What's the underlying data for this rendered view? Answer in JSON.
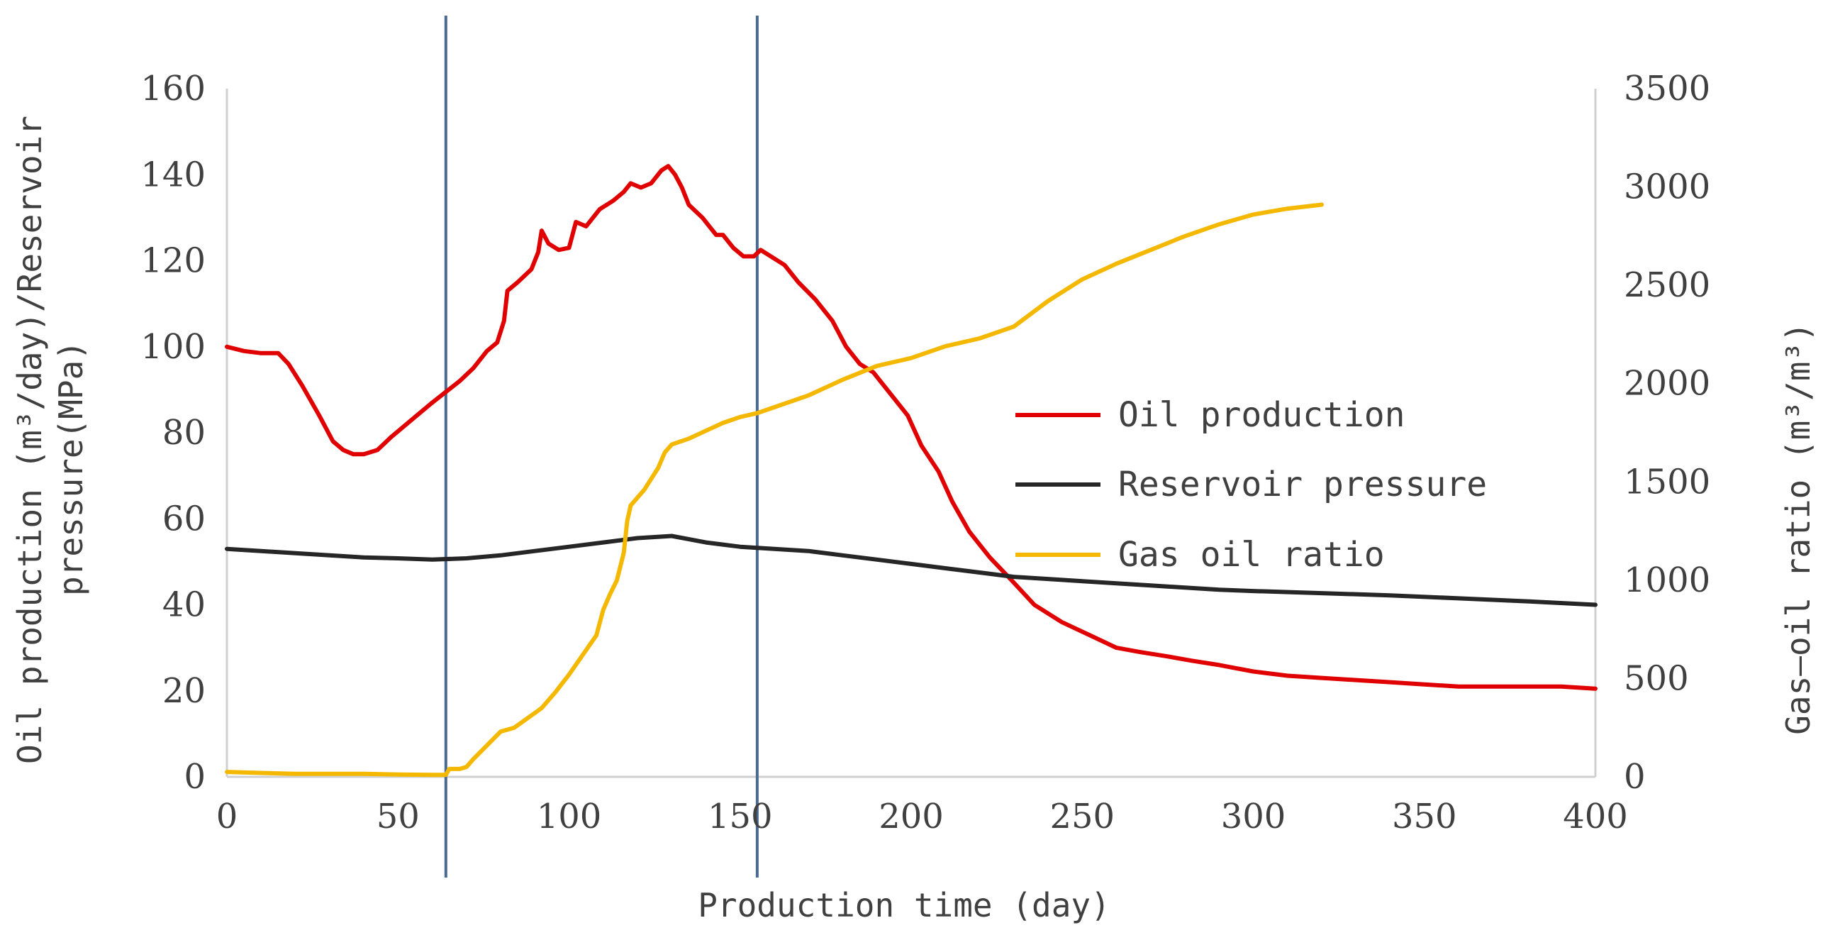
{
  "chart_data": {
    "type": "line",
    "x_axis": {
      "label": "Production time (day)",
      "range": [
        0,
        400
      ],
      "ticks": [
        "0",
        "50",
        "100",
        "150",
        "200",
        "250",
        "300",
        "350",
        "400"
      ]
    },
    "y_left": {
      "label_line1": "Oil production (m³/day)/Reservoir",
      "label_line2": "pressure(MPa)",
      "range": [
        0,
        160
      ],
      "ticks": [
        "0",
        "20",
        "40",
        "60",
        "80",
        "100",
        "120",
        "140",
        "160"
      ]
    },
    "y_right": {
      "label": "Gas–oil ratio (m³/m³)",
      "range": [
        0,
        3500
      ],
      "ticks": [
        "0",
        "500",
        "1000",
        "1500",
        "2000",
        "2500",
        "3000",
        "3500"
      ]
    },
    "vertical_markers": [
      64,
      155
    ],
    "legend_position": "center-right",
    "series": [
      {
        "name": "Oil production",
        "axis": "left",
        "color": "#e00000",
        "points": [
          [
            0,
            100
          ],
          [
            5,
            99
          ],
          [
            10,
            98.5
          ],
          [
            15,
            98.5
          ],
          [
            18,
            96
          ],
          [
            22,
            91
          ],
          [
            27,
            84
          ],
          [
            31,
            78
          ],
          [
            34,
            76
          ],
          [
            37,
            75
          ],
          [
            40,
            75
          ],
          [
            44,
            76
          ],
          [
            48,
            79
          ],
          [
            54,
            83
          ],
          [
            60,
            87
          ],
          [
            64,
            89.5
          ],
          [
            68,
            92
          ],
          [
            72,
            95
          ],
          [
            76,
            99
          ],
          [
            79,
            101
          ],
          [
            81,
            106
          ],
          [
            82,
            113
          ],
          [
            85,
            115
          ],
          [
            89,
            118
          ],
          [
            91,
            122
          ],
          [
            92,
            127
          ],
          [
            94,
            124
          ],
          [
            97,
            122.5
          ],
          [
            100,
            123
          ],
          [
            102,
            129
          ],
          [
            105,
            128
          ],
          [
            109,
            132
          ],
          [
            113,
            134
          ],
          [
            116,
            136
          ],
          [
            118,
            138
          ],
          [
            121,
            137
          ],
          [
            124,
            138
          ],
          [
            127,
            141
          ],
          [
            129,
            142
          ],
          [
            131,
            140
          ],
          [
            133,
            137
          ],
          [
            135,
            133
          ],
          [
            139,
            130
          ],
          [
            141,
            128
          ],
          [
            143,
            126
          ],
          [
            145,
            126
          ],
          [
            148,
            123
          ],
          [
            151,
            121
          ],
          [
            154,
            121
          ],
          [
            156,
            122.5
          ],
          [
            159,
            121
          ],
          [
            163,
            119
          ],
          [
            167,
            115
          ],
          [
            172,
            111
          ],
          [
            177,
            106
          ],
          [
            181,
            100
          ],
          [
            185,
            96
          ],
          [
            189,
            94
          ],
          [
            194,
            89
          ],
          [
            199,
            84
          ],
          [
            203,
            77
          ],
          [
            208,
            71
          ],
          [
            212,
            64
          ],
          [
            217,
            57
          ],
          [
            223,
            51
          ],
          [
            229,
            46
          ],
          [
            236,
            40
          ],
          [
            244,
            36
          ],
          [
            252,
            33
          ],
          [
            260,
            30
          ],
          [
            267,
            29
          ],
          [
            275,
            28
          ],
          [
            282,
            27
          ],
          [
            290,
            26
          ],
          [
            300,
            24.5
          ],
          [
            310,
            23.5
          ],
          [
            320,
            23
          ],
          [
            330,
            22.5
          ],
          [
            340,
            22
          ],
          [
            350,
            21.5
          ],
          [
            360,
            21
          ],
          [
            370,
            21
          ],
          [
            380,
            21
          ],
          [
            390,
            21
          ],
          [
            400,
            20.5
          ]
        ]
      },
      {
        "name": "Reservoir pressure",
        "axis": "left",
        "color": "#262626",
        "points": [
          [
            0,
            53
          ],
          [
            10,
            52.5
          ],
          [
            20,
            52
          ],
          [
            30,
            51.5
          ],
          [
            40,
            51
          ],
          [
            50,
            50.8
          ],
          [
            60,
            50.5
          ],
          [
            70,
            50.8
          ],
          [
            80,
            51.5
          ],
          [
            90,
            52.5
          ],
          [
            100,
            53.5
          ],
          [
            110,
            54.5
          ],
          [
            120,
            55.5
          ],
          [
            130,
            56
          ],
          [
            140,
            54.5
          ],
          [
            150,
            53.5
          ],
          [
            160,
            53
          ],
          [
            170,
            52.5
          ],
          [
            180,
            51.5
          ],
          [
            190,
            50.5
          ],
          [
            200,
            49.5
          ],
          [
            210,
            48.5
          ],
          [
            220,
            47.5
          ],
          [
            230,
            46.5
          ],
          [
            240,
            46
          ],
          [
            250,
            45.5
          ],
          [
            260,
            45
          ],
          [
            270,
            44.5
          ],
          [
            280,
            44
          ],
          [
            290,
            43.5
          ],
          [
            300,
            43.2
          ],
          [
            320,
            42.7
          ],
          [
            340,
            42.2
          ],
          [
            360,
            41.5
          ],
          [
            380,
            40.8
          ],
          [
            400,
            40
          ]
        ]
      },
      {
        "name": "Gas oil ratio",
        "axis": "right",
        "color": "#f5b800",
        "points": [
          [
            0,
            25
          ],
          [
            10,
            20
          ],
          [
            20,
            15
          ],
          [
            30,
            15
          ],
          [
            40,
            15
          ],
          [
            50,
            12
          ],
          [
            60,
            10
          ],
          [
            64,
            10
          ],
          [
            65,
            40
          ],
          [
            68,
            40
          ],
          [
            70,
            50
          ],
          [
            72,
            90
          ],
          [
            76,
            160
          ],
          [
            80,
            230
          ],
          [
            84,
            250
          ],
          [
            88,
            300
          ],
          [
            92,
            350
          ],
          [
            96,
            430
          ],
          [
            100,
            520
          ],
          [
            104,
            620
          ],
          [
            108,
            720
          ],
          [
            110,
            850
          ],
          [
            112,
            930
          ],
          [
            114,
            1000
          ],
          [
            116,
            1140
          ],
          [
            117,
            1300
          ],
          [
            118,
            1380
          ],
          [
            122,
            1460
          ],
          [
            126,
            1570
          ],
          [
            128,
            1650
          ],
          [
            130,
            1690
          ],
          [
            135,
            1720
          ],
          [
            140,
            1760
          ],
          [
            145,
            1800
          ],
          [
            150,
            1830
          ],
          [
            155,
            1850
          ],
          [
            160,
            1880
          ],
          [
            170,
            1940
          ],
          [
            180,
            2020
          ],
          [
            190,
            2090
          ],
          [
            200,
            2130
          ],
          [
            210,
            2190
          ],
          [
            220,
            2230
          ],
          [
            230,
            2290
          ],
          [
            240,
            2420
          ],
          [
            250,
            2530
          ],
          [
            260,
            2610
          ],
          [
            270,
            2680
          ],
          [
            280,
            2750
          ],
          [
            290,
            2810
          ],
          [
            300,
            2860
          ],
          [
            310,
            2890
          ],
          [
            320,
            2910
          ]
        ]
      }
    ]
  }
}
